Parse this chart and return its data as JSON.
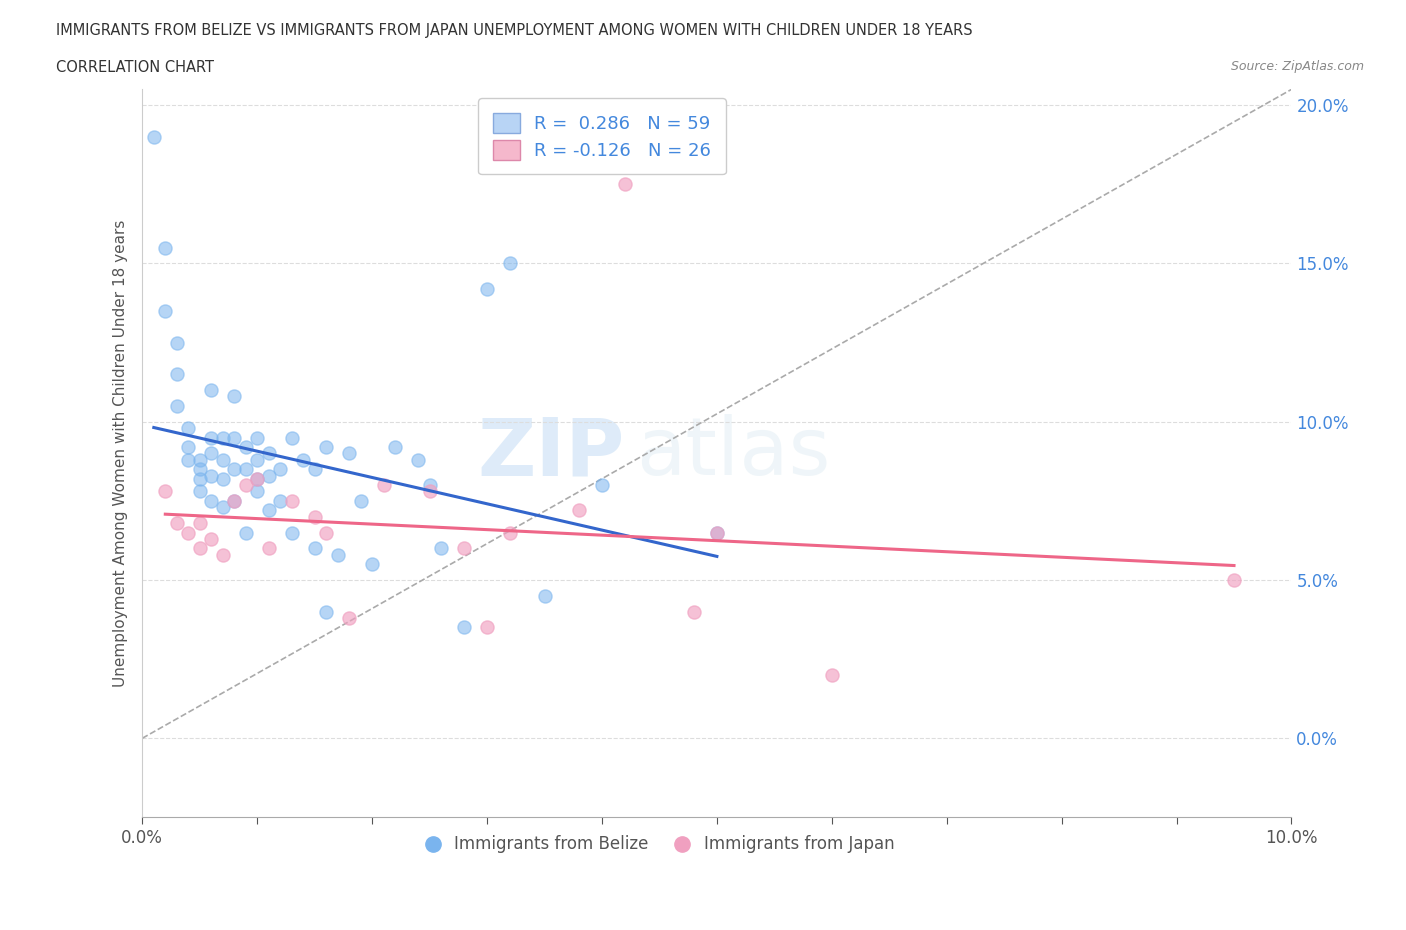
{
  "title": "IMMIGRANTS FROM BELIZE VS IMMIGRANTS FROM JAPAN UNEMPLOYMENT AMONG WOMEN WITH CHILDREN UNDER 18 YEARS",
  "subtitle": "CORRELATION CHART",
  "source": "Source: ZipAtlas.com",
  "ylabel": "Unemployment Among Women with Children Under 18 years",
  "watermark_zip": "ZIP",
  "watermark_atlas": "atlas",
  "legend_belize": {
    "R": 0.286,
    "N": 59,
    "color": "#b8d4f5"
  },
  "legend_japan": {
    "R": -0.126,
    "N": 26,
    "color": "#f5b8cc"
  },
  "belize_color": "#7ab4ee",
  "japan_color": "#f0a0c0",
  "trend_belize_color": "#3366cc",
  "trend_japan_color": "#ee6688",
  "dashed_line_color": "#aaaaaa",
  "x_min": 0.0,
  "x_max": 0.1,
  "y_min": -0.025,
  "y_max": 0.205,
  "yticks": [
    0.0,
    0.05,
    0.1,
    0.15,
    0.2
  ],
  "xticks": [
    0.0,
    0.01,
    0.02,
    0.03,
    0.04,
    0.05,
    0.06,
    0.07,
    0.08,
    0.09,
    0.1
  ],
  "background_color": "#ffffff",
  "grid_color": "#dddddd",
  "title_color": "#333333",
  "tick_label_color_right": "#4488dd",
  "belize_x": [
    0.001,
    0.002,
    0.002,
    0.003,
    0.003,
    0.003,
    0.004,
    0.004,
    0.004,
    0.005,
    0.005,
    0.005,
    0.005,
    0.006,
    0.006,
    0.006,
    0.006,
    0.006,
    0.007,
    0.007,
    0.007,
    0.007,
    0.008,
    0.008,
    0.008,
    0.008,
    0.009,
    0.009,
    0.009,
    0.01,
    0.01,
    0.01,
    0.01,
    0.011,
    0.011,
    0.011,
    0.012,
    0.012,
    0.013,
    0.013,
    0.014,
    0.015,
    0.015,
    0.016,
    0.016,
    0.017,
    0.018,
    0.019,
    0.02,
    0.022,
    0.024,
    0.025,
    0.026,
    0.028,
    0.03,
    0.032,
    0.035,
    0.04,
    0.05
  ],
  "belize_y": [
    0.19,
    0.155,
    0.135,
    0.125,
    0.115,
    0.105,
    0.098,
    0.092,
    0.088,
    0.088,
    0.085,
    0.082,
    0.078,
    0.11,
    0.095,
    0.09,
    0.083,
    0.075,
    0.095,
    0.088,
    0.082,
    0.073,
    0.108,
    0.095,
    0.085,
    0.075,
    0.092,
    0.085,
    0.065,
    0.095,
    0.088,
    0.082,
    0.078,
    0.09,
    0.083,
    0.072,
    0.085,
    0.075,
    0.095,
    0.065,
    0.088,
    0.085,
    0.06,
    0.092,
    0.04,
    0.058,
    0.09,
    0.075,
    0.055,
    0.092,
    0.088,
    0.08,
    0.06,
    0.035,
    0.142,
    0.15,
    0.045,
    0.08,
    0.065
  ],
  "japan_x": [
    0.002,
    0.003,
    0.004,
    0.005,
    0.005,
    0.006,
    0.007,
    0.008,
    0.009,
    0.01,
    0.011,
    0.013,
    0.015,
    0.016,
    0.018,
    0.021,
    0.025,
    0.028,
    0.03,
    0.032,
    0.038,
    0.042,
    0.048,
    0.05,
    0.06,
    0.095
  ],
  "japan_y": [
    0.078,
    0.068,
    0.065,
    0.068,
    0.06,
    0.063,
    0.058,
    0.075,
    0.08,
    0.082,
    0.06,
    0.075,
    0.07,
    0.065,
    0.038,
    0.08,
    0.078,
    0.06,
    0.035,
    0.065,
    0.072,
    0.175,
    0.04,
    0.065,
    0.02,
    0.05
  ],
  "trend_belize_x_start": 0.001,
  "trend_belize_x_end": 0.05,
  "trend_japan_x_start": 0.002,
  "trend_japan_x_end": 0.095
}
